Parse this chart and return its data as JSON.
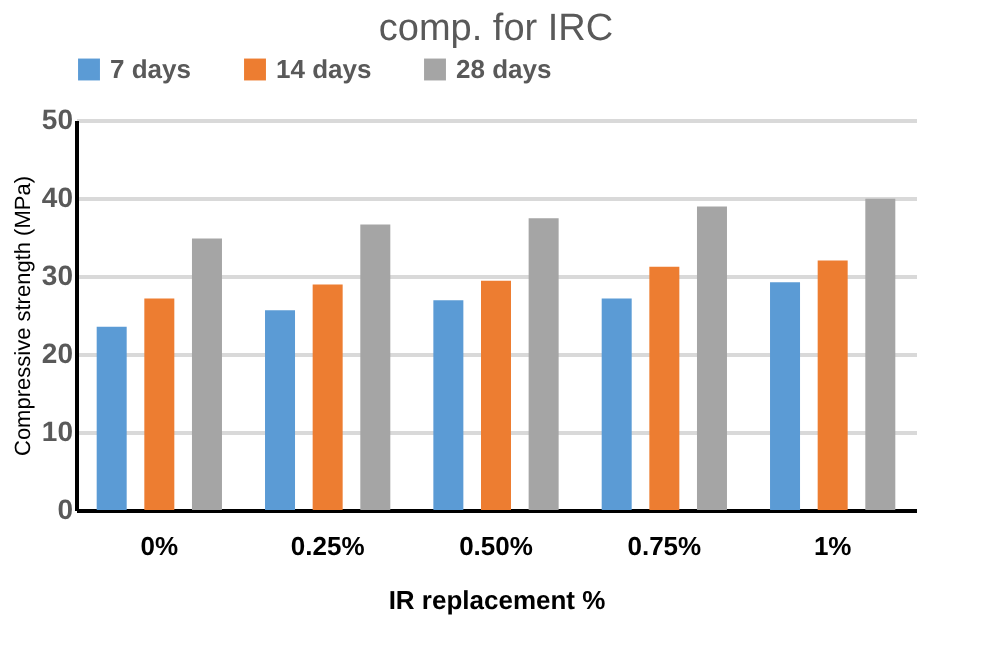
{
  "chart_data": {
    "type": "bar",
    "title": "comp. for IRC",
    "xlabel": "IR replacement %",
    "ylabel": "Compressive strength (MPa)",
    "categories": [
      "0%",
      "0.25%",
      "0.50%",
      "0.75%",
      "1%"
    ],
    "series": [
      {
        "name": "7 days",
        "color": "#5b9bd5",
        "values": [
          23.5,
          25.6,
          26.9,
          27.1,
          29.2
        ]
      },
      {
        "name": "14 days",
        "color": "#ed7d31",
        "values": [
          27.1,
          28.9,
          29.4,
          31.2,
          32.0
        ]
      },
      {
        "name": "28 days",
        "color": "#a5a5a5",
        "values": [
          34.8,
          36.6,
          37.4,
          38.9,
          39.9
        ]
      }
    ],
    "ylim": [
      0,
      50
    ],
    "yticks": [
      0,
      10,
      20,
      30,
      40,
      50
    ],
    "grid": "y",
    "legend": "top"
  }
}
